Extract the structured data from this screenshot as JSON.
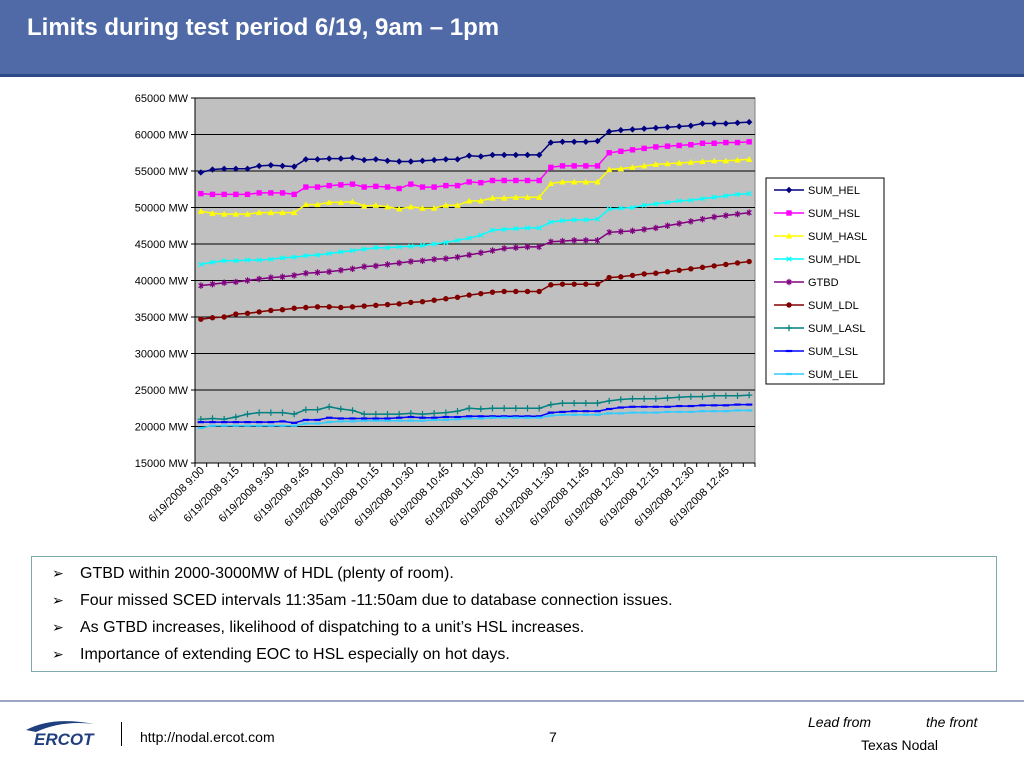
{
  "slide": {
    "title": "Limits during test period 6/19, 9am – 1pm",
    "bullets": [
      "GTBD within 2000-3000MW of HDL (plenty of room).",
      "Four missed SCED intervals 11:35am -11:50am due to database connection issues.",
      "As GTBD increases, likelihood of dispatching to a unit’s HSL increases.",
      "Importance of extending EOC to HSL especially on hot days."
    ],
    "bullet_icon": "arrow-bullet-icon"
  },
  "footer": {
    "logo_text": "ERCOT",
    "url": "http://nodal.ercot.com",
    "page_number": "7",
    "tagline_lead": "Lead from",
    "tagline_front": "the front",
    "tagline_org": "Texas Nodal"
  },
  "chart_data": {
    "type": "line",
    "title": "",
    "xlabel": "",
    "ylabel": "",
    "ylim": [
      15000,
      65000
    ],
    "y_ticks": [
      "15000 MW",
      "20000 MW",
      "25000 MW",
      "30000 MW",
      "35000 MW",
      "40000 MW",
      "45000 MW",
      "50000 MW",
      "55000 MW",
      "60000 MW",
      "65000 MW"
    ],
    "x_tick_labels": [
      "6/19/2008 9:00",
      "6/19/2008 9:15",
      "6/19/2008 9:30",
      "6/19/2008 9:45",
      "6/19/2008 10:00",
      "6/19/2008 10:15",
      "6/19/2008 10:30",
      "6/19/2008 10:45",
      "6/19/2008 11:00",
      "6/19/2008 11:15",
      "6/19/2008 11:30",
      "6/19/2008 11:45",
      "6/19/2008 12:00",
      "6/19/2008 12:15",
      "6/19/2008 12:30",
      "6/19/2008 12:45"
    ],
    "point_count": 48,
    "grid": true,
    "plot_background": "#c0c0c0",
    "legend_position": "right",
    "series": [
      {
        "name": "SUM_HEL",
        "color": "#000080",
        "marker": "diamond",
        "values": [
          54800,
          55200,
          55300,
          55300,
          55300,
          55700,
          55800,
          55700,
          55600,
          56600,
          56600,
          56700,
          56700,
          56800,
          56500,
          56600,
          56400,
          56300,
          56300,
          56400,
          56500,
          56600,
          56600,
          57100,
          57000,
          57200,
          57200,
          57200,
          57200,
          57200,
          58900,
          59000,
          59000,
          59000,
          59100,
          60400,
          60600,
          60700,
          60800,
          60900,
          61000,
          61100,
          61200,
          61500,
          61500,
          61500,
          61600,
          61700
        ]
      },
      {
        "name": "SUM_HSL",
        "color": "#ff00ff",
        "marker": "square",
        "values": [
          51900,
          51800,
          51800,
          51800,
          51800,
          52000,
          52000,
          52000,
          51800,
          52800,
          52800,
          53000,
          53100,
          53200,
          52800,
          52900,
          52800,
          52600,
          53200,
          52800,
          52800,
          53000,
          53000,
          53500,
          53400,
          53700,
          53700,
          53700,
          53700,
          53700,
          55500,
          55700,
          55700,
          55700,
          55700,
          57500,
          57700,
          57900,
          58100,
          58300,
          58400,
          58500,
          58600,
          58800,
          58800,
          58900,
          58900,
          59000
        ]
      },
      {
        "name": "SUM_HASL",
        "color": "#ffff00",
        "marker": "triangle",
        "values": [
          49500,
          49200,
          49100,
          49100,
          49100,
          49300,
          49300,
          49300,
          49300,
          50400,
          50400,
          50700,
          50700,
          50800,
          50200,
          50300,
          50100,
          49800,
          50100,
          49900,
          49900,
          50300,
          50300,
          50900,
          50900,
          51300,
          51300,
          51400,
          51400,
          51400,
          53300,
          53500,
          53500,
          53500,
          53500,
          55200,
          55300,
          55500,
          55700,
          55900,
          56000,
          56100,
          56200,
          56300,
          56400,
          56400,
          56500,
          56600
        ]
      },
      {
        "name": "SUM_HDL",
        "color": "#00ffff",
        "marker": "x",
        "values": [
          42200,
          42500,
          42700,
          42700,
          42800,
          42800,
          42900,
          43100,
          43200,
          43400,
          43500,
          43700,
          43900,
          44100,
          44300,
          44500,
          44500,
          44600,
          44700,
          44800,
          45000,
          45200,
          45500,
          45800,
          46200,
          46900,
          47000,
          47100,
          47200,
          47200,
          48000,
          48200,
          48300,
          48300,
          48400,
          49800,
          49900,
          50000,
          50300,
          50500,
          50700,
          50900,
          51000,
          51200,
          51400,
          51600,
          51800,
          51900
        ]
      },
      {
        "name": "GTBD",
        "color": "#800080",
        "marker": "star",
        "values": [
          39300,
          39500,
          39700,
          39800,
          40000,
          40200,
          40400,
          40500,
          40700,
          41000,
          41100,
          41200,
          41400,
          41600,
          41900,
          42000,
          42200,
          42400,
          42600,
          42700,
          42900,
          43000,
          43200,
          43500,
          43800,
          44100,
          44400,
          44500,
          44600,
          44600,
          45300,
          45400,
          45500,
          45500,
          45500,
          46600,
          46700,
          46800,
          47000,
          47200,
          47500,
          47800,
          48100,
          48400,
          48700,
          48900,
          49100,
          49300
        ]
      },
      {
        "name": "SUM_LDL",
        "color": "#800000",
        "marker": "circle",
        "values": [
          34700,
          34900,
          35000,
          35400,
          35500,
          35700,
          35900,
          36000,
          36200,
          36300,
          36400,
          36400,
          36300,
          36400,
          36500,
          36600,
          36700,
          36800,
          37000,
          37100,
          37300,
          37500,
          37700,
          38000,
          38200,
          38400,
          38500,
          38500,
          38500,
          38500,
          39400,
          39500,
          39500,
          39500,
          39500,
          40400,
          40500,
          40700,
          40900,
          41000,
          41200,
          41400,
          41600,
          41800,
          42000,
          42200,
          42400,
          42600
        ]
      },
      {
        "name": "SUM_LASL",
        "color": "#008080",
        "marker": "plus",
        "values": [
          21000,
          21100,
          21000,
          21300,
          21700,
          21900,
          21900,
          21900,
          21700,
          22300,
          22300,
          22700,
          22400,
          22200,
          21700,
          21700,
          21700,
          21700,
          21800,
          21700,
          21800,
          21900,
          22100,
          22500,
          22400,
          22500,
          22500,
          22500,
          22500,
          22500,
          23000,
          23200,
          23200,
          23200,
          23200,
          23500,
          23700,
          23800,
          23800,
          23800,
          23900,
          24000,
          24100,
          24100,
          24200,
          24200,
          24200,
          24300
        ]
      },
      {
        "name": "SUM_LSL",
        "color": "#0000ff",
        "marker": "dash",
        "values": [
          20600,
          20600,
          20600,
          20600,
          20600,
          20600,
          20600,
          20700,
          20500,
          20900,
          20900,
          21200,
          21100,
          21100,
          21100,
          21100,
          21100,
          21200,
          21300,
          21200,
          21200,
          21300,
          21300,
          21400,
          21400,
          21400,
          21400,
          21400,
          21400,
          21400,
          21900,
          22000,
          22100,
          22100,
          22100,
          22400,
          22600,
          22700,
          22700,
          22700,
          22700,
          22800,
          22800,
          22900,
          22900,
          22900,
          23000,
          23000
        ]
      },
      {
        "name": "SUM_LEL",
        "color": "#33ccff",
        "marker": "dash",
        "values": [
          19800,
          20100,
          20100,
          20100,
          20100,
          20100,
          20100,
          20100,
          20100,
          20400,
          20400,
          20600,
          20700,
          20700,
          20800,
          20800,
          20800,
          20800,
          20800,
          20800,
          20900,
          20900,
          21000,
          21100,
          21100,
          21200,
          21200,
          21200,
          21200,
          21200,
          21500,
          21600,
          21600,
          21600,
          21600,
          21800,
          21800,
          21900,
          21900,
          21900,
          22000,
          22000,
          22000,
          22100,
          22100,
          22100,
          22200,
          22200
        ]
      }
    ]
  }
}
